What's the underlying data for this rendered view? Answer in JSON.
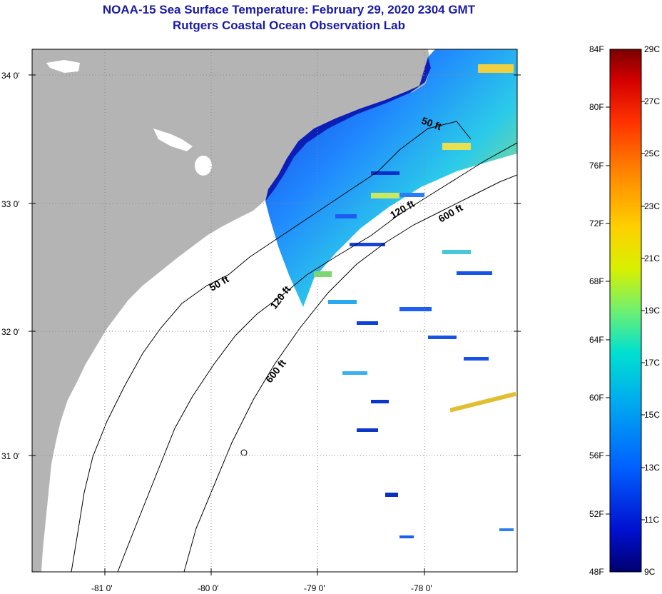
{
  "title": {
    "line1": "NOAA-15 Sea Surface Temperature:  February 29, 2020 2304 GMT",
    "line2": "Rutgers Coastal Ocean Observation Lab"
  },
  "axes": {
    "lat_ticks": [
      "34 0'",
      "33 0'",
      "32 0'",
      "31 0'"
    ],
    "lon_ticks": [
      "-81 0'",
      "-80 0'",
      "-79 0'",
      "-78 0'"
    ]
  },
  "contour_labels": [
    "50 ft",
    "120 ft",
    "600 ft",
    "50 ft",
    "120 ft",
    "600 ft"
  ],
  "colorbar": {
    "fahrenheit": [
      "84F",
      "80F",
      "76F",
      "72F",
      "68F",
      "64F",
      "60F",
      "56F",
      "52F",
      "48F"
    ],
    "celsius": [
      "29C",
      "27C",
      "25C",
      "23C",
      "21C",
      "19C",
      "17C",
      "15C",
      "13C",
      "11C",
      "9C"
    ],
    "colors": [
      "#7a0000",
      "#d40000",
      "#ff3300",
      "#ff8800",
      "#ffd000",
      "#d8f000",
      "#70f070",
      "#00e0d0",
      "#00a8f0",
      "#0060ff",
      "#0010d0",
      "#000070"
    ]
  },
  "colors": {
    "land": "#b4b4b4",
    "ocean": "#ffffff",
    "title": "#1a1aa8"
  }
}
